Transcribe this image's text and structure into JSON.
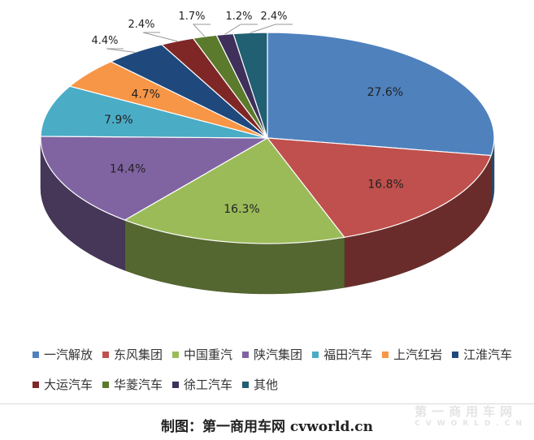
{
  "chart_data": {
    "type": "pie",
    "style": "3d",
    "categories": [
      "一汽解放",
      "东风集团",
      "中国重汽",
      "陕汽集团",
      "福田汽车",
      "上汽红岩",
      "江淮汽车",
      "大运汽车",
      "华菱汽车",
      "徐工汽车",
      "其他"
    ],
    "values": [
      27.6,
      16.8,
      16.3,
      14.4,
      7.9,
      4.7,
      4.4,
      2.4,
      1.7,
      1.2,
      2.4
    ],
    "labels": [
      "27.6%",
      "16.8%",
      "16.3%",
      "14.4%",
      "7.9%",
      "4.7%",
      "4.4%",
      "2.4%",
      "1.7%",
      "1.2%",
      "2.4%"
    ],
    "colors": [
      "#4f81bd",
      "#c0504d",
      "#9bbb59",
      "#8064a2",
      "#4bacc6",
      "#f79646",
      "#1f497d",
      "#7f2726",
      "#5b7a2c",
      "#3e2f5b",
      "#215f73"
    ],
    "legend_position": "bottom"
  },
  "caption": "制图：第一商用车网 cvworld.cn",
  "watermark": {
    "main": "第一商用车网",
    "sub": "CVWORLD.CN"
  }
}
